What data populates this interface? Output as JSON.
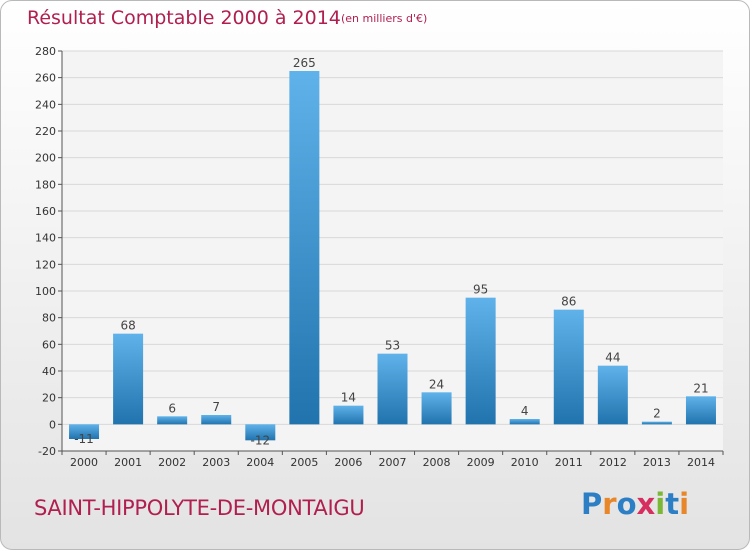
{
  "header": {
    "title": "Résultat Comptable 2000 à 2014",
    "subtitle": "(en milliers d'€)"
  },
  "footer": {
    "place_name": "SAINT-HIPPOLYTE-DE-MONTAIGU",
    "logo_text": "Proxiti",
    "logo_colors": [
      "#2c7fc4",
      "#e8862a",
      "#2c7fc4",
      "#d62f5f",
      "#7bb837",
      "#2c7fc4",
      "#e8862a"
    ]
  },
  "colors": {
    "bar_light": "#5fb2ea",
    "bar_dark": "#2173ad",
    "text": "#b01f4e",
    "grid": "#d8d8d8"
  },
  "chart_data": {
    "type": "bar",
    "title": "Résultat Comptable 2000 à 2014",
    "subtitle": "(en milliers d'€)",
    "categories": [
      "2000",
      "2001",
      "2002",
      "2003",
      "2004",
      "2005",
      "2006",
      "2007",
      "2008",
      "2009",
      "2010",
      "2011",
      "2012",
      "2013",
      "2014"
    ],
    "values": [
      -11,
      68,
      6,
      7,
      -12,
      265,
      14,
      53,
      24,
      95,
      4,
      86,
      44,
      2,
      21
    ],
    "ylim": [
      -20,
      280
    ],
    "yticks": [
      -20,
      0,
      20,
      40,
      60,
      80,
      100,
      120,
      140,
      160,
      180,
      200,
      220,
      240,
      260,
      280
    ],
    "xlabel": "",
    "ylabel": "",
    "grid": true,
    "data_labels": true
  }
}
